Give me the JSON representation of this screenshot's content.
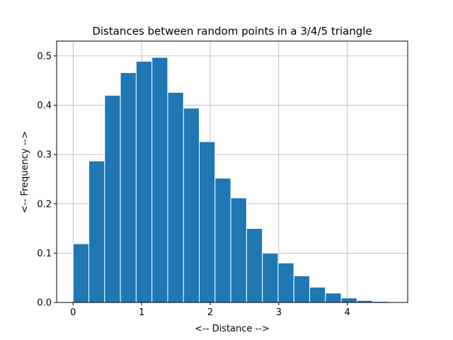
{
  "chart_data": {
    "type": "bar",
    "title": "Distances between random points in a 3/4/5 triangle",
    "xlabel": "<-- Distance -->",
    "ylabel": "<-- Frequency -->",
    "xlim": [
      -0.24,
      4.88
    ],
    "ylim": [
      0,
      0.53
    ],
    "grid": true,
    "bar_color": "#1f77b4",
    "bar_edge_color": "#ffffff",
    "x_ticks": [
      0,
      1,
      2,
      3,
      4
    ],
    "y_ticks": [
      0.0,
      0.1,
      0.2,
      0.3,
      0.4,
      0.5
    ],
    "x_tick_labels": [
      "0",
      "1",
      "2",
      "3",
      "4"
    ],
    "y_tick_labels": [
      "0.0",
      "0.1",
      "0.2",
      "0.3",
      "0.4",
      "0.5"
    ],
    "bins": [
      {
        "x_start": 0.0,
        "x_end": 0.23,
        "value": 0.119
      },
      {
        "x_start": 0.23,
        "x_end": 0.46,
        "value": 0.287
      },
      {
        "x_start": 0.46,
        "x_end": 0.69,
        "value": 0.42
      },
      {
        "x_start": 0.69,
        "x_end": 0.92,
        "value": 0.466
      },
      {
        "x_start": 0.92,
        "x_end": 1.15,
        "value": 0.489
      },
      {
        "x_start": 1.15,
        "x_end": 1.38,
        "value": 0.497
      },
      {
        "x_start": 1.38,
        "x_end": 1.61,
        "value": 0.426
      },
      {
        "x_start": 1.61,
        "x_end": 1.84,
        "value": 0.394
      },
      {
        "x_start": 1.84,
        "x_end": 2.07,
        "value": 0.326
      },
      {
        "x_start": 2.07,
        "x_end": 2.3,
        "value": 0.252
      },
      {
        "x_start": 2.3,
        "x_end": 2.53,
        "value": 0.212
      },
      {
        "x_start": 2.53,
        "x_end": 2.76,
        "value": 0.15
      },
      {
        "x_start": 2.76,
        "x_end": 2.99,
        "value": 0.1
      },
      {
        "x_start": 2.99,
        "x_end": 3.22,
        "value": 0.08
      },
      {
        "x_start": 3.22,
        "x_end": 3.45,
        "value": 0.054
      },
      {
        "x_start": 3.45,
        "x_end": 3.68,
        "value": 0.031
      },
      {
        "x_start": 3.68,
        "x_end": 3.91,
        "value": 0.019
      },
      {
        "x_start": 3.91,
        "x_end": 4.14,
        "value": 0.009
      },
      {
        "x_start": 4.14,
        "x_end": 4.37,
        "value": 0.004
      },
      {
        "x_start": 4.37,
        "x_end": 4.6,
        "value": 0.002
      }
    ]
  }
}
